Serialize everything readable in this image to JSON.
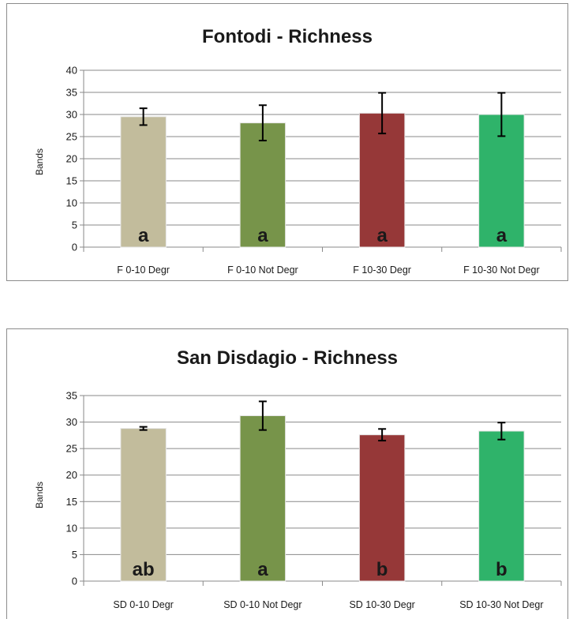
{
  "chart_data": [
    {
      "type": "bar",
      "title": "Fontodi - Richness",
      "ylabel": "Bands",
      "xlabel": "",
      "ylim": [
        0,
        40
      ],
      "yticks": [
        0,
        5,
        10,
        15,
        20,
        25,
        30,
        35,
        40
      ],
      "grid": true,
      "categories": [
        "F 0-10 Degr",
        "F 0-10 Not Degr",
        "F 10-30 Degr",
        "F 10-30 Not Degr"
      ],
      "values": [
        29.5,
        28.1,
        30.3,
        30.0
      ],
      "errors": [
        1.9,
        4.0,
        4.6,
        4.9
      ],
      "labels": [
        "a",
        "a",
        "a",
        "a"
      ],
      "colors": [
        "#c2bc9c",
        "#77944a",
        "#963838",
        "#2fb36a"
      ]
    },
    {
      "type": "bar",
      "title": "San Disdagio  - Richness",
      "ylabel": "Bands",
      "xlabel": "",
      "ylim": [
        0,
        35
      ],
      "yticks": [
        0,
        5,
        10,
        15,
        20,
        25,
        30,
        35
      ],
      "grid": true,
      "categories": [
        "SD 0-10 Degr",
        "SD 0-10 Not Degr",
        "SD 10-30 Degr",
        "SD 10-30 Not Degr"
      ],
      "values": [
        28.8,
        31.2,
        27.6,
        28.3
      ],
      "errors": [
        0.3,
        2.7,
        1.1,
        1.6
      ],
      "labels": [
        "ab",
        "a",
        "b",
        "b"
      ],
      "colors": [
        "#c2bc9c",
        "#77944a",
        "#963838",
        "#2fb36a"
      ]
    }
  ]
}
